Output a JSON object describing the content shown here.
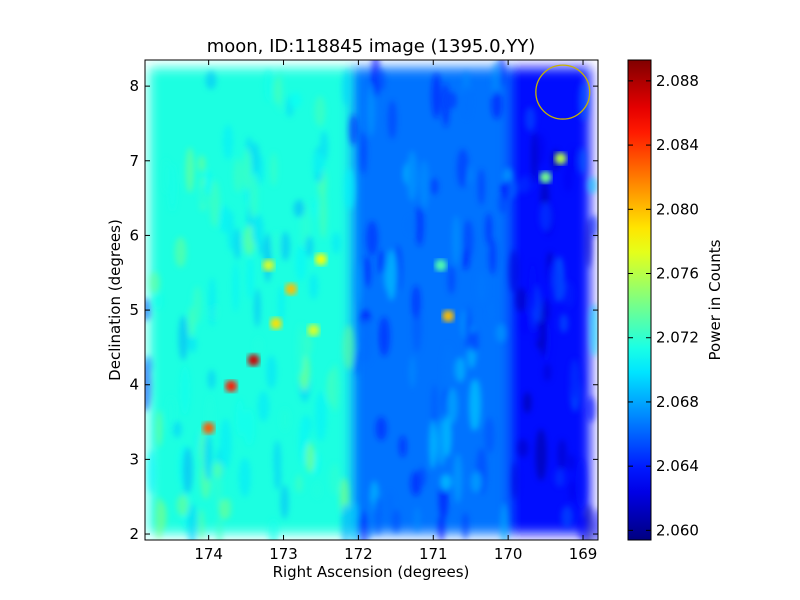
{
  "chart_data": {
    "type": "heatmap",
    "title": "moon, ID:118845 image (1395.0,YY)",
    "xlabel": "Right Ascension (degrees)",
    "ylabel": "Declination (degrees)",
    "xlim": [
      174.85,
      168.8
    ],
    "ylim": [
      1.92,
      8.35
    ],
    "x_ticks": [
      174,
      173,
      172,
      171,
      170,
      169
    ],
    "y_ticks": [
      2,
      3,
      4,
      5,
      6,
      7,
      8
    ],
    "colorbar": {
      "label": "Power in Counts",
      "range": [
        2.0594,
        2.0893
      ],
      "ticks": [
        2.06,
        2.064,
        2.068,
        2.072,
        2.076,
        2.08,
        2.084,
        2.088
      ],
      "tick_labels": [
        "2.060",
        "2.064",
        "2.068",
        "2.072",
        "2.076",
        "2.080",
        "2.084",
        "2.088"
      ],
      "colormap": "jet"
    },
    "description_regions": [
      {
        "ra_range": [
          174.8,
          172.1
        ],
        "dec_range": [
          2.0,
          8.25
        ],
        "approx_value": 2.0715
      },
      {
        "ra_range": [
          172.1,
          170.0
        ],
        "dec_range": [
          2.0,
          8.25
        ],
        "approx_value": 2.0665
      },
      {
        "ra_range": [
          170.0,
          168.9
        ],
        "dec_range": [
          2.0,
          8.25
        ],
        "approx_value": 2.0635
      }
    ],
    "hot_spots": [
      {
        "ra": 173.4,
        "dec": 4.33,
        "value": 2.087
      },
      {
        "ra": 173.7,
        "dec": 3.98,
        "value": 2.085
      },
      {
        "ra": 174.0,
        "dec": 3.42,
        "value": 2.083
      },
      {
        "ra": 172.9,
        "dec": 5.28,
        "value": 2.08
      },
      {
        "ra": 173.2,
        "dec": 5.6,
        "value": 2.077
      },
      {
        "ra": 172.5,
        "dec": 5.68,
        "value": 2.078
      },
      {
        "ra": 173.1,
        "dec": 4.82,
        "value": 2.079
      },
      {
        "ra": 170.8,
        "dec": 4.92,
        "value": 2.08
      },
      {
        "ra": 172.6,
        "dec": 4.73,
        "value": 2.077
      },
      {
        "ra": 169.3,
        "dec": 7.03,
        "value": 2.076
      },
      {
        "ra": 169.5,
        "dec": 6.78,
        "value": 2.074
      },
      {
        "ra": 170.9,
        "dec": 5.6,
        "value": 2.073
      }
    ],
    "annotation_circle": {
      "ra": 169.27,
      "dec": 7.92,
      "radius_deg": 0.36,
      "color": "#c8b400"
    }
  }
}
